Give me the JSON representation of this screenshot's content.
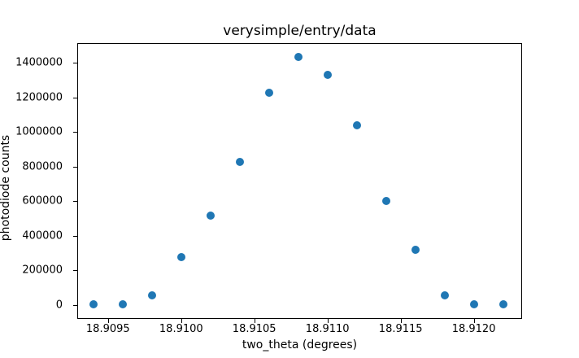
{
  "figure": {
    "title": "verysimple/entry/data",
    "xlabel": "two_theta (degrees)",
    "ylabel": "photodiode counts"
  },
  "chart_data": {
    "type": "scatter",
    "title": "verysimple/entry/data",
    "xlabel": "two_theta (degrees)",
    "ylabel": "photodiode counts",
    "x": [
      18.9094,
      18.9096,
      18.9098,
      18.91,
      18.9102,
      18.9104,
      18.9106,
      18.9108,
      18.911,
      18.9112,
      18.9114,
      18.9116,
      18.9118,
      18.912,
      18.9122
    ],
    "y": [
      1193,
      4474,
      53220,
      274310,
      515430,
      827880,
      1227100,
      1434640,
      1330280,
      1037070,
      598720,
      316460,
      56677,
      1000,
      1000
    ],
    "marker_color": "#1f77b4",
    "marker_shape": "circle",
    "xlim": [
      18.90929,
      18.91233
    ],
    "ylim": [
      -82000,
      1513000
    ],
    "xticks": [
      18.9095,
      18.91,
      18.9105,
      18.911,
      18.9115,
      18.912
    ],
    "xtick_labels": [
      "18.9095",
      "18.9100",
      "18.9105",
      "18.9110",
      "18.9115",
      "18.9120"
    ],
    "yticks": [
      0,
      200000,
      400000,
      600000,
      800000,
      1000000,
      1200000,
      1400000
    ],
    "ytick_labels": [
      "0",
      "200000",
      "400000",
      "600000",
      "800000",
      "1000000",
      "1200000",
      "1400000"
    ],
    "grid": false,
    "legend": null
  }
}
